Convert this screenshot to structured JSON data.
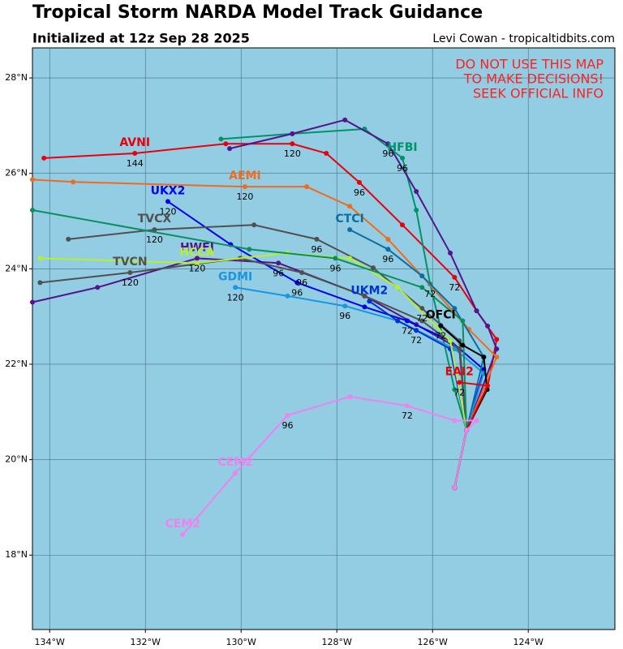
{
  "chart_data": {
    "type": "track_map",
    "title": "Tropical Storm NARDA Model Track Guidance",
    "subtitle": "Initialized at 12z Sep 28 2025",
    "credit": "Levi Cowan - tropicaltidbits.com",
    "warning": [
      "DO NOT USE THIS MAP",
      "TO MAKE DECISIONS!",
      "SEEK OFFICIAL INFO"
    ],
    "xlim": [
      -134.36,
      -122.19
    ],
    "ylim": [
      16.44,
      28.63
    ],
    "xticks": [
      {
        "value": -134,
        "label": "134°W"
      },
      {
        "value": -132,
        "label": "132°W"
      },
      {
        "value": -130,
        "label": "130°W"
      },
      {
        "value": -128,
        "label": "128°W"
      },
      {
        "value": -126,
        "label": "126°W"
      },
      {
        "value": -124,
        "label": "124°W"
      }
    ],
    "yticks": [
      {
        "value": 18,
        "label": "18°N"
      },
      {
        "value": 20,
        "label": "20°N"
      },
      {
        "value": 22,
        "label": "22°N"
      },
      {
        "value": 24,
        "label": "24°N"
      },
      {
        "value": 26,
        "label": "26°N"
      },
      {
        "value": 28,
        "label": "28°N"
      }
    ],
    "grid": true,
    "series": [
      {
        "name": "AVNI",
        "color": "#e8000b",
        "x": [
          -125.54,
          -125.29,
          -124.86,
          -124.66,
          -125.08,
          -125.54,
          -126.63,
          -127.53,
          -128.22,
          -128.93,
          -130.32,
          -132.22,
          -134.12
        ],
        "y": [
          19.41,
          20.62,
          21.47,
          22.52,
          23.12,
          23.82,
          24.92,
          25.81,
          26.42,
          26.62,
          26.62,
          26.42,
          26.32
        ],
        "labels": [
          {
            "text": "72",
            "index": 5
          },
          {
            "text": "96",
            "index": 7
          },
          {
            "text": "120",
            "index": 9
          },
          {
            "text": "144",
            "index": 11
          }
        ],
        "name_at": [
          11
        ]
      },
      {
        "name": "HFBI",
        "color": "#00936a",
        "x": [
          -125.54,
          -125.29,
          -125.54,
          -125.8,
          -126.05,
          -126.34,
          -126.63,
          -127.42,
          -128.93,
          -130.42
        ],
        "y": [
          19.41,
          20.62,
          21.47,
          22.63,
          23.68,
          25.23,
          26.32,
          26.93,
          26.83,
          26.72
        ],
        "labels": [
          {
            "text": "72",
            "index": 4
          },
          {
            "text": "96",
            "index": 6
          }
        ],
        "name_at": [
          6
        ]
      },
      {
        "color": "#55148c",
        "x": [
          -125.54,
          -125.29,
          -124.66,
          -124.85,
          -125.08,
          -125.63,
          -126.34,
          -126.93,
          -127.83,
          -128.93,
          -130.24
        ],
        "y": [
          19.41,
          20.62,
          22.32,
          22.8,
          23.12,
          24.33,
          25.62,
          26.62,
          27.12,
          26.83,
          26.52
        ],
        "labels": [
          {
            "text": "96",
            "index": 7
          }
        ],
        "name_at": []
      },
      {
        "name": "HWFI",
        "color": "#55148c",
        "x": [
          -125.54,
          -125.29,
          -125.44,
          -126.34,
          -127.42,
          -129.22,
          -130.92,
          -133.0,
          -134.36
        ],
        "y": [
          19.41,
          20.62,
          22.32,
          22.83,
          23.43,
          24.12,
          24.22,
          23.61,
          23.3
        ],
        "labels": [
          {
            "text": "96",
            "index": 5
          },
          {
            "text": "120",
            "index": 6
          }
        ],
        "name_at": [
          6
        ]
      },
      {
        "name": "AEMI",
        "color": "#f26b1d",
        "x": [
          -125.54,
          -125.29,
          -124.66,
          -125.24,
          -126.22,
          -126.93,
          -127.73,
          -128.63,
          -129.92,
          -133.51,
          -134.36
        ],
        "y": [
          19.41,
          20.62,
          22.15,
          22.73,
          23.85,
          24.62,
          25.31,
          25.72,
          25.72,
          25.82,
          25.87
        ],
        "labels": [
          {
            "text": "120",
            "index": 8
          }
        ],
        "name_at": [
          8
        ]
      },
      {
        "name": "UKX2",
        "color": "#0000ee",
        "x": [
          -125.54,
          -125.29,
          -124.93,
          -125.63,
          -126.53,
          -127.42,
          -128.83,
          -130.22,
          -131.53
        ],
        "y": [
          19.41,
          20.62,
          21.89,
          22.49,
          22.91,
          23.2,
          23.71,
          24.51,
          25.41
        ],
        "labels": [
          {
            "text": "72",
            "index": 4
          },
          {
            "text": "96",
            "index": 6
          },
          {
            "text": "120",
            "index": 8
          }
        ],
        "name_at": [
          8
        ]
      },
      {
        "name": "GDMI",
        "color": "#1a96e0",
        "x": [
          -125.54,
          -125.29,
          -124.93,
          -125.54,
          -126.73,
          -127.83,
          -129.03,
          -130.12
        ],
        "y": [
          19.41,
          20.62,
          21.81,
          22.32,
          22.91,
          23.22,
          23.43,
          23.61
        ],
        "labels": [
          {
            "text": "96",
            "index": 5
          },
          {
            "text": "120",
            "index": 7
          }
        ],
        "name_at": [
          7
        ]
      },
      {
        "name": "CTCI",
        "color": "#0a6ea4",
        "x": [
          -125.54,
          -125.29,
          -124.93,
          -125.54,
          -126.22,
          -126.93,
          -127.73
        ],
        "y": [
          19.41,
          20.62,
          22.15,
          23.17,
          23.85,
          24.41,
          24.82
        ],
        "labels": [
          {
            "text": "96",
            "index": 5
          }
        ],
        "name_at": [
          6
        ]
      },
      {
        "name": "UKM2",
        "color": "#0033cc",
        "x": [
          -125.54,
          -125.29,
          -125.63,
          -126.34,
          -126.73,
          -127.32
        ],
        "y": [
          19.41,
          20.62,
          22.32,
          22.71,
          22.91,
          23.32
        ],
        "labels": [
          {
            "text": "72",
            "index": 3
          }
        ],
        "name_at": [
          5
        ]
      },
      {
        "name": "TVCX",
        "color": "#505050",
        "x": [
          -125.54,
          -125.29,
          -125.44,
          -126.22,
          -127.24,
          -128.42,
          -129.73,
          -131.81,
          -133.61
        ],
        "y": [
          19.41,
          20.62,
          22.49,
          23.17,
          24.02,
          24.62,
          24.92,
          24.82,
          24.62
        ],
        "labels": [
          {
            "text": "72",
            "index": 3
          },
          {
            "text": "96",
            "index": 5
          },
          {
            "text": "120",
            "index": 7
          }
        ],
        "name_at": [
          7
        ]
      },
      {
        "name": "TVCN",
        "color": "#505050",
        "x": [
          -125.54,
          -125.29,
          -125.44,
          -126.22,
          -127.42,
          -128.73,
          -130.02,
          -132.32,
          -134.2
        ],
        "y": [
          19.41,
          20.62,
          22.32,
          22.91,
          23.43,
          23.92,
          24.22,
          23.92,
          23.71
        ],
        "labels": [
          {
            "text": "96",
            "index": 5
          },
          {
            "text": "120",
            "index": 7
          }
        ],
        "name_at": [
          7
        ]
      },
      {
        "name": "HCCA",
        "color": "#b4f030",
        "x": [
          -125.54,
          -125.29,
          -125.63,
          -126.73,
          -127.73,
          -129.03,
          -130.92,
          -134.2
        ],
        "y": [
          19.41,
          20.62,
          22.49,
          23.61,
          24.22,
          24.33,
          24.12,
          24.22
        ],
        "labels": [],
        "name_at": [
          6
        ]
      },
      {
        "color": "#0b8f5e",
        "x": [
          -125.54,
          -125.29,
          -125.37,
          -126.22,
          -128.03,
          -129.83,
          -134.36
        ],
        "y": [
          19.41,
          20.62,
          22.91,
          23.61,
          24.22,
          24.41,
          25.23
        ],
        "labels": [
          {
            "text": "96",
            "index": 4
          }
        ],
        "name_at": []
      },
      {
        "name": "OFCI",
        "color": "#000000",
        "x": [
          -125.54,
          -125.29,
          -124.86,
          -124.93,
          -125.37,
          -125.83
        ],
        "y": [
          19.41,
          20.62,
          21.47,
          22.15,
          22.4,
          22.81
        ],
        "labels": [
          {
            "text": "72",
            "index": 5
          }
        ],
        "name_at": [
          5
        ]
      },
      {
        "name": "EAI2",
        "color": "#e8000b",
        "x": [
          -125.54,
          -125.29,
          -124.85,
          -125.44
        ],
        "y": [
          19.41,
          20.62,
          21.55,
          21.62
        ],
        "labels": [
          {
            "text": "72",
            "index": 3
          }
        ],
        "name_at": [
          3
        ]
      },
      {
        "name": "CEM2",
        "color": "#ee82ee",
        "x": [
          -125.54,
          -125.29,
          -125.08,
          -125.54,
          -126.53,
          -127.73,
          -129.03,
          -130.12,
          -131.22
        ],
        "y": [
          19.41,
          20.62,
          20.82,
          20.82,
          21.13,
          21.32,
          20.93,
          19.72,
          18.43
        ],
        "labels": [
          {
            "text": "72",
            "index": 4
          },
          {
            "text": "96",
            "index": 6
          }
        ],
        "name_at": [
          7,
          8
        ]
      }
    ]
  }
}
